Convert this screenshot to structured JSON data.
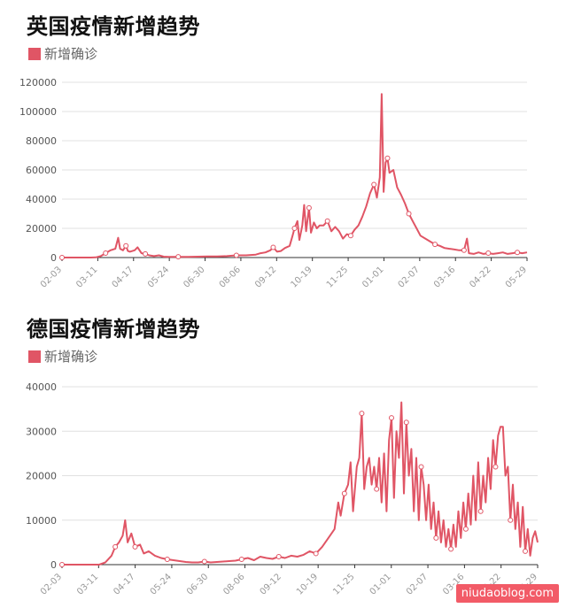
{
  "chart_data": [
    {
      "type": "line",
      "title": "英国疫情新增趋势",
      "legend": "新增确诊",
      "color": "#e05565",
      "ylim": [
        0,
        120000
      ],
      "yticks": [
        0,
        20000,
        40000,
        60000,
        80000,
        100000,
        120000
      ],
      "tick_labels": [
        "02-03",
        "03-11",
        "04-17",
        "05-24",
        "06-30",
        "08-06",
        "09-12",
        "10-19",
        "11-25",
        "01-01",
        "02-07",
        "03-16",
        "04-22",
        "05-29"
      ],
      "series": [
        {
          "values": [
            [
              0,
              0
            ],
            [
              10,
              0
            ],
            [
              20,
              0
            ],
            [
              30,
              0
            ],
            [
              35,
              100
            ],
            [
              40,
              1000
            ],
            [
              45,
              3000
            ],
            [
              50,
              5000
            ],
            [
              55,
              6000
            ],
            [
              58,
              13500
            ],
            [
              60,
              6000
            ],
            [
              63,
              5000
            ],
            [
              66,
              8000
            ],
            [
              68,
              4500
            ],
            [
              70,
              4000
            ],
            [
              75,
              5000
            ],
            [
              78,
              7000
            ],
            [
              82,
              3000
            ],
            [
              86,
              2500
            ],
            [
              90,
              1500
            ],
            [
              95,
              1000
            ],
            [
              100,
              1500
            ],
            [
              105,
              600
            ],
            [
              110,
              500
            ],
            [
              120,
              500
            ],
            [
              130,
              400
            ],
            [
              140,
              600
            ],
            [
              150,
              700
            ],
            [
              160,
              800
            ],
            [
              170,
              1000
            ],
            [
              180,
              1500
            ],
            [
              190,
              1500
            ],
            [
              200,
              2000
            ],
            [
              205,
              3000
            ],
            [
              210,
              3500
            ],
            [
              215,
              5000
            ],
            [
              218,
              7000
            ],
            [
              222,
              4000
            ],
            [
              226,
              4500
            ],
            [
              230,
              6500
            ],
            [
              235,
              8000
            ],
            [
              238,
              15000
            ],
            [
              240,
              20000
            ],
            [
              243,
              25000
            ],
            [
              245,
              12000
            ],
            [
              248,
              22000
            ],
            [
              250,
              36000
            ],
            [
              252,
              18000
            ],
            [
              255,
              34000
            ],
            [
              257,
              17000
            ],
            [
              260,
              24000
            ],
            [
              263,
              20000
            ],
            [
              266,
              22000
            ],
            [
              270,
              22000
            ],
            [
              274,
              25000
            ],
            [
              278,
              18000
            ],
            [
              282,
              21000
            ],
            [
              286,
              18000
            ],
            [
              290,
              13000
            ],
            [
              294,
              16000
            ],
            [
              298,
              15000
            ],
            [
              302,
              19000
            ],
            [
              306,
              22000
            ],
            [
              310,
              28000
            ],
            [
              314,
              35000
            ],
            [
              318,
              44000
            ],
            [
              322,
              50000
            ],
            [
              325,
              41000
            ],
            [
              328,
              55000
            ],
            [
              330,
              112000
            ],
            [
              332,
              45000
            ],
            [
              334,
              65000
            ],
            [
              336,
              68000
            ],
            [
              338,
              58000
            ],
            [
              342,
              60000
            ],
            [
              346,
              48000
            ],
            [
              350,
              43000
            ],
            [
              354,
              37000
            ],
            [
              358,
              30000
            ],
            [
              362,
              25000
            ],
            [
              366,
              20000
            ],
            [
              370,
              15000
            ],
            [
              375,
              13000
            ],
            [
              380,
              11000
            ],
            [
              385,
              9000
            ],
            [
              390,
              8000
            ],
            [
              395,
              6500
            ],
            [
              400,
              6000
            ],
            [
              405,
              5500
            ],
            [
              410,
              5000
            ],
            [
              415,
              5000
            ],
            [
              418,
              13000
            ],
            [
              420,
              3000
            ],
            [
              425,
              2500
            ],
            [
              430,
              3500
            ],
            [
              435,
              2500
            ],
            [
              440,
              3000
            ],
            [
              445,
              2500
            ],
            [
              450,
              3000
            ],
            [
              455,
              3500
            ],
            [
              460,
              2500
            ],
            [
              465,
              3000
            ],
            [
              470,
              3500
            ],
            [
              475,
              3000
            ],
            [
              480,
              3500
            ]
          ]
        }
      ]
    },
    {
      "type": "line",
      "title": "德国疫情新增趋势",
      "legend": "新增确诊",
      "color": "#e05565",
      "ylim": [
        0,
        40000
      ],
      "yticks": [
        0,
        10000,
        20000,
        30000,
        40000
      ],
      "tick_labels": [
        "02-03",
        "03-11",
        "04-17",
        "05-24",
        "06-30",
        "08-06",
        "09-12",
        "10-19",
        "11-25",
        "01-01",
        "02-07",
        "03-16",
        "04-22",
        "05-29"
      ],
      "series": [
        {
          "values": [
            [
              0,
              0
            ],
            [
              10,
              0
            ],
            [
              20,
              0
            ],
            [
              30,
              0
            ],
            [
              35,
              500
            ],
            [
              40,
              2000
            ],
            [
              43,
              4000
            ],
            [
              46,
              5000
            ],
            [
              49,
              6500
            ],
            [
              51,
              10000
            ],
            [
              53,
              5000
            ],
            [
              56,
              7000
            ],
            [
              59,
              4000
            ],
            [
              63,
              4500
            ],
            [
              66,
              2500
            ],
            [
              70,
              3000
            ],
            [
              75,
              2000
            ],
            [
              80,
              1500
            ],
            [
              85,
              1200
            ],
            [
              90,
              1000
            ],
            [
              95,
              800
            ],
            [
              100,
              600
            ],
            [
              105,
              500
            ],
            [
              110,
              500
            ],
            [
              115,
              700
            ],
            [
              120,
              500
            ],
            [
              125,
              600
            ],
            [
              130,
              700
            ],
            [
              135,
              800
            ],
            [
              140,
              900
            ],
            [
              145,
              1200
            ],
            [
              150,
              1500
            ],
            [
              155,
              1000
            ],
            [
              160,
              1800
            ],
            [
              165,
              1500
            ],
            [
              170,
              1300
            ],
            [
              175,
              1800
            ],
            [
              180,
              1500
            ],
            [
              185,
              2000
            ],
            [
              190,
              1800
            ],
            [
              195,
              2200
            ],
            [
              200,
              3000
            ],
            [
              205,
              2500
            ],
            [
              210,
              4000
            ],
            [
              215,
              6000
            ],
            [
              220,
              8000
            ],
            [
              223,
              14000
            ],
            [
              225,
              11000
            ],
            [
              228,
              16000
            ],
            [
              231,
              18000
            ],
            [
              233,
              23000
            ],
            [
              235,
              12000
            ],
            [
              238,
              22000
            ],
            [
              240,
              24000
            ],
            [
              242,
              34000
            ],
            [
              244,
              17000
            ],
            [
              246,
              22000
            ],
            [
              248,
              24000
            ],
            [
              250,
              18000
            ],
            [
              252,
              22000
            ],
            [
              254,
              17000
            ],
            [
              256,
              24000
            ],
            [
              258,
              14000
            ],
            [
              260,
              25000
            ],
            [
              262,
              12000
            ],
            [
              264,
              28000
            ],
            [
              266,
              33000
            ],
            [
              268,
              15000
            ],
            [
              270,
              30000
            ],
            [
              272,
              24000
            ],
            [
              274,
              36500
            ],
            [
              276,
              16000
            ],
            [
              278,
              32000
            ],
            [
              280,
              20000
            ],
            [
              282,
              26000
            ],
            [
              284,
              12000
            ],
            [
              286,
              24000
            ],
            [
              288,
              10000
            ],
            [
              290,
              22000
            ],
            [
              292,
              18000
            ],
            [
              294,
              10000
            ],
            [
              296,
              18000
            ],
            [
              298,
              8000
            ],
            [
              300,
              14000
            ],
            [
              302,
              6000
            ],
            [
              304,
              12000
            ],
            [
              306,
              5000
            ],
            [
              308,
              10000
            ],
            [
              310,
              4000
            ],
            [
              312,
              8000
            ],
            [
              314,
              3500
            ],
            [
              316,
              9000
            ],
            [
              318,
              4000
            ],
            [
              320,
              12000
            ],
            [
              322,
              6000
            ],
            [
              324,
              14000
            ],
            [
              326,
              8000
            ],
            [
              328,
              16000
            ],
            [
              330,
              9000
            ],
            [
              332,
              20000
            ],
            [
              334,
              10000
            ],
            [
              336,
              23000
            ],
            [
              338,
              12000
            ],
            [
              340,
              20000
            ],
            [
              342,
              14000
            ],
            [
              344,
              24000
            ],
            [
              346,
              17000
            ],
            [
              348,
              28000
            ],
            [
              350,
              22000
            ],
            [
              352,
              29000
            ],
            [
              354,
              31000
            ],
            [
              356,
              31000
            ],
            [
              358,
              20000
            ],
            [
              360,
              22000
            ],
            [
              362,
              10000
            ],
            [
              364,
              18000
            ],
            [
              366,
              8000
            ],
            [
              368,
              14000
            ],
            [
              370,
              4000
            ],
            [
              372,
              13000
            ],
            [
              374,
              3000
            ],
            [
              376,
              8000
            ],
            [
              378,
              2000
            ],
            [
              380,
              6000
            ],
            [
              382,
              7500
            ],
            [
              384,
              5000
            ]
          ]
        }
      ]
    }
  ],
  "watermark": "niudaoblog.com"
}
